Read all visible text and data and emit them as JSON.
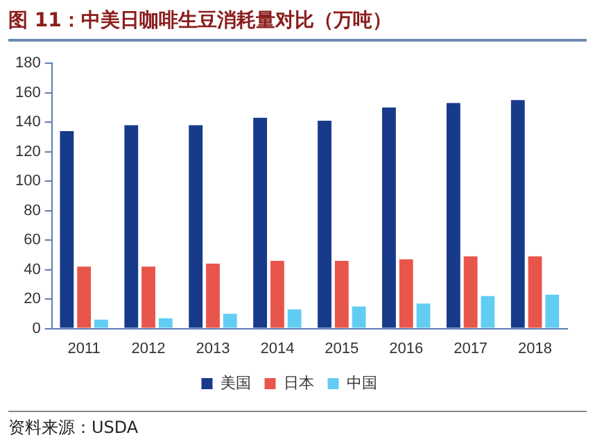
{
  "chart_data": {
    "type": "bar",
    "title": "图 11：中美日咖啡生豆消耗量对比（万吨）",
    "categories": [
      "2011",
      "2012",
      "2013",
      "2014",
      "2015",
      "2016",
      "2017",
      "2018"
    ],
    "series": [
      {
        "name": "美国",
        "color": "#173a8a",
        "values": [
          134,
          138,
          138,
          143,
          141,
          150,
          153,
          155
        ]
      },
      {
        "name": "日本",
        "color": "#e8564b",
        "values": [
          42,
          42,
          44,
          46,
          46,
          47,
          49,
          49
        ]
      },
      {
        "name": "中国",
        "color": "#62cdf2",
        "values": [
          6,
          7,
          10,
          13,
          15,
          17,
          22,
          23
        ]
      }
    ],
    "ylim": [
      0,
      180
    ],
    "yticks": [
      0,
      20,
      40,
      60,
      80,
      100,
      120,
      140,
      160,
      180
    ],
    "grid": false,
    "legend": "bottom",
    "annotations": [
      "资料来源：USDA"
    ]
  }
}
